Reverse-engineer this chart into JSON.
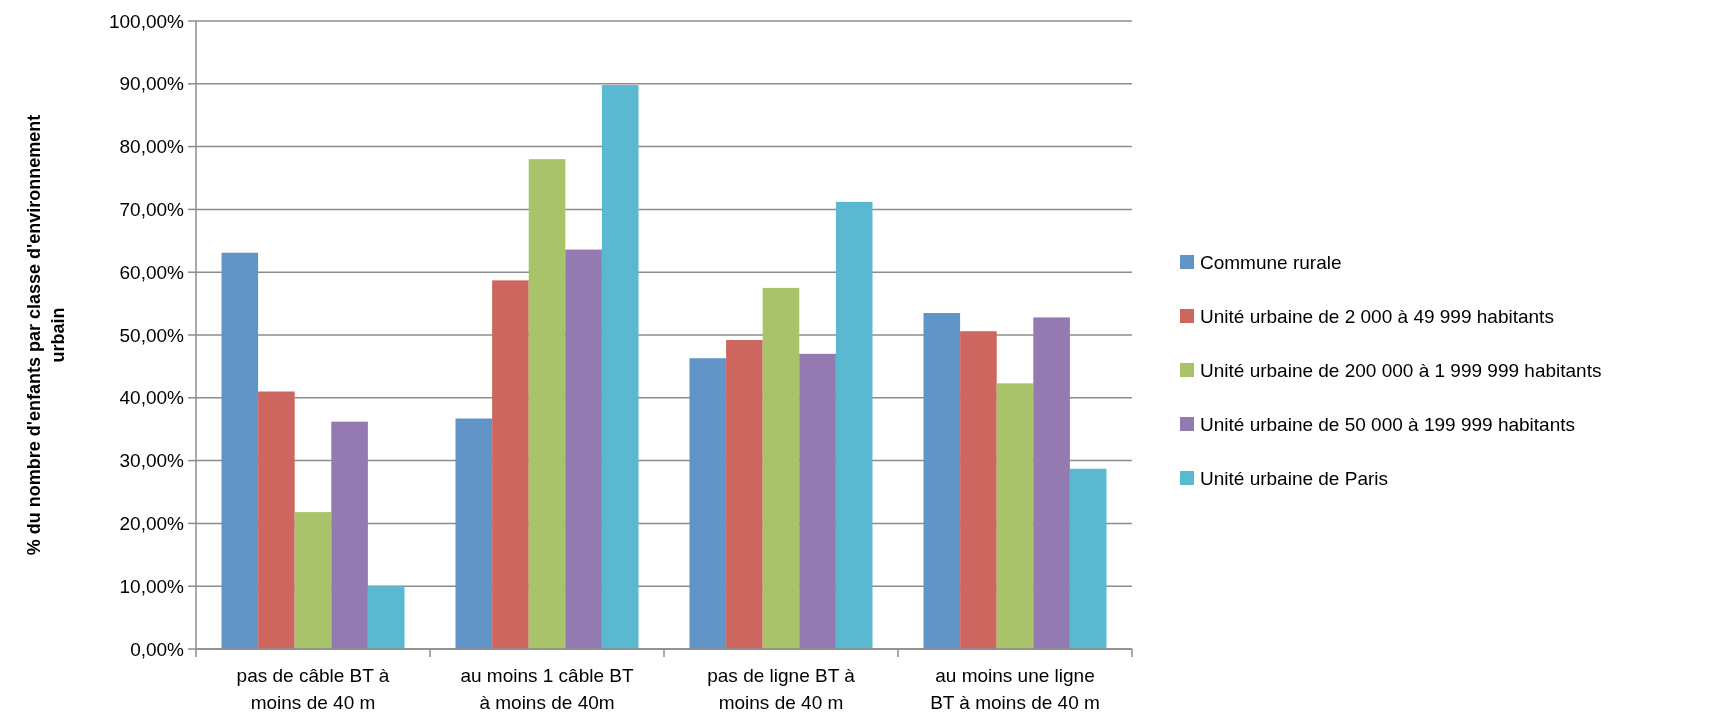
{
  "chart_data": {
    "type": "bar",
    "ylabel": "% du nombre d'enfants par classe d'environnement urbain",
    "categories": [
      "pas de câble BT à moins de 40 m",
      "au moins 1 câble BT à moins de 40m",
      "pas de ligne BT à moins de 40 m",
      "au moins une ligne BT à moins de 40 m"
    ],
    "series": [
      {
        "name": "Commune rurale",
        "color": "#6195c8",
        "values": [
          63.1,
          36.7,
          46.3,
          53.5
        ]
      },
      {
        "name": "Unité urbaine de 2 000 à 49 999 habitants",
        "color": "#cc665f",
        "values": [
          41.0,
          58.7,
          49.2,
          50.6
        ]
      },
      {
        "name": "Unité urbaine de 200 000 à 1 999 999 habitants",
        "color": "#a9c36b",
        "values": [
          21.8,
          78.0,
          57.5,
          42.3
        ]
      },
      {
        "name": "Unité urbaine de 50 000 à 199 999 habitants",
        "color": "#937ab1",
        "values": [
          36.2,
          63.6,
          47.0,
          52.8
        ]
      },
      {
        "name": "Unité urbaine de Paris",
        "color": "#5bb8d1",
        "values": [
          10.0,
          89.8,
          71.2,
          28.7
        ]
      }
    ],
    "ylim": [
      0,
      100
    ],
    "yticks": [
      {
        "value": 0,
        "label": "0,00%"
      },
      {
        "value": 10,
        "label": "10,00%"
      },
      {
        "value": 20,
        "label": "20,00%"
      },
      {
        "value": 30,
        "label": "30,00%"
      },
      {
        "value": 40,
        "label": "40,00%"
      },
      {
        "value": 50,
        "label": "50,00%"
      },
      {
        "value": 60,
        "label": "60,00%"
      },
      {
        "value": 70,
        "label": "70,00%"
      },
      {
        "value": 80,
        "label": "80,00%"
      },
      {
        "value": 90,
        "label": "90,00%"
      },
      {
        "value": 100,
        "label": "100,00%"
      }
    ],
    "grid": "y",
    "legend": "right"
  }
}
